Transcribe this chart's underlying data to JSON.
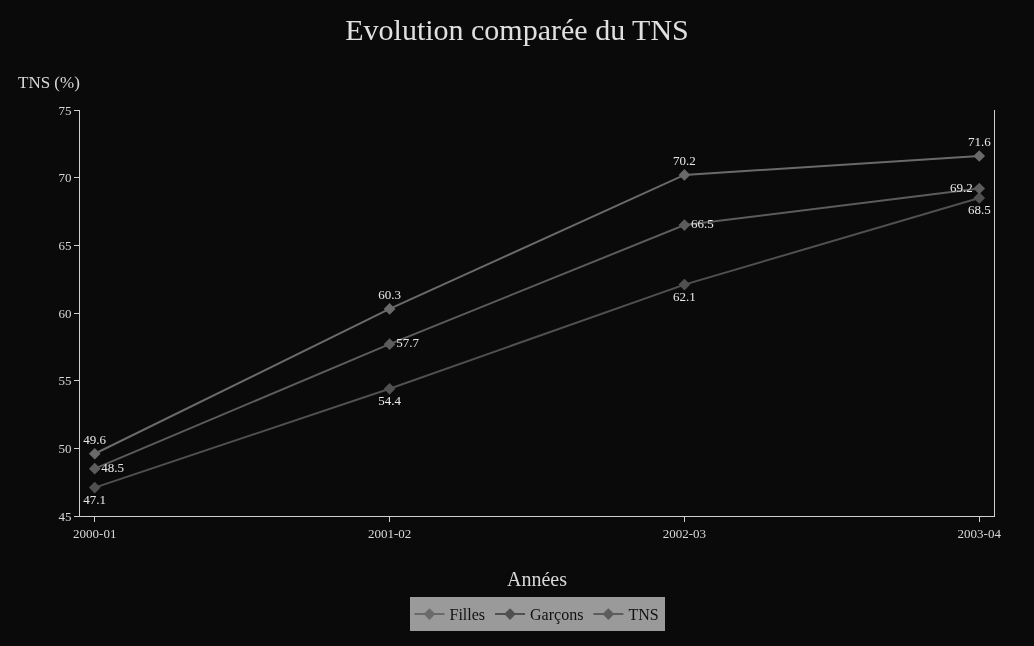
{
  "chart_data": {
    "type": "line",
    "title": "Evolution comparée du TNS",
    "xlabel": "Années",
    "ylabel": "TNS (%)",
    "categories": [
      "2000-01",
      "2001-02",
      "2002-03",
      "2003-04"
    ],
    "series": [
      {
        "name": "Filles",
        "color": "#6a6a6a",
        "values": [
          49.6,
          60.3,
          70.2,
          71.6
        ]
      },
      {
        "name": "Garçons",
        "color": "#505050",
        "values": [
          47.1,
          54.4,
          62.1,
          68.5
        ]
      },
      {
        "name": "TNS",
        "color": "#5c5c5c",
        "values": [
          48.5,
          57.7,
          66.5,
          69.2
        ]
      }
    ],
    "ylim": [
      45,
      75
    ],
    "yticks": [
      45,
      50,
      55,
      60,
      65,
      70,
      75
    ],
    "data_labels": true,
    "marker": "diamond",
    "legend": "bottom"
  }
}
